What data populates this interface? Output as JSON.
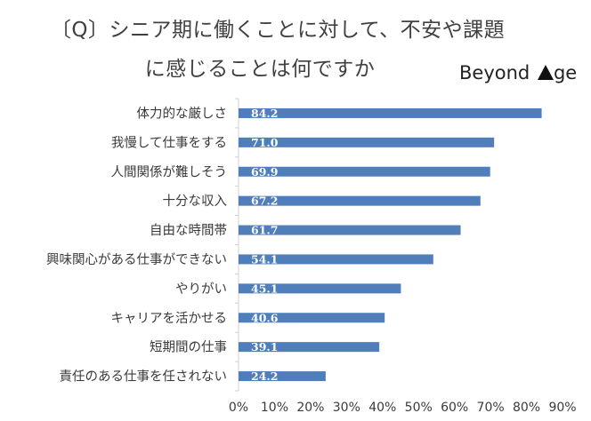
{
  "title_line1": "〔Q〕シニア期に働くことに対して、不安や課題",
  "title_line2": "に感じることは何ですか",
  "logo_text": "Beyond",
  "logo_text2": "ge",
  "logo_icon": "triangle-a-icon",
  "colors": {
    "bar": "#4f7ebb",
    "text": "#404040",
    "axis": "#d0d0d0"
  },
  "chart_data": {
    "type": "bar",
    "orientation": "horizontal",
    "title": "〔Q〕シニア期に働くことに対して、不安や課題に感じることは何ですか",
    "categories": [
      "体力的な厳しさ",
      "我慢して仕事をする",
      "人間関係が難しそう",
      "十分な収入",
      "自由な時間帯",
      "興味関心がある仕事ができない",
      "やりがい",
      "キャリアを活かせる",
      "短期間の仕事",
      "責任のある仕事を任されない"
    ],
    "values": [
      84.2,
      71.0,
      69.9,
      67.2,
      61.7,
      54.1,
      45.1,
      40.6,
      39.1,
      24.2
    ],
    "value_labels": [
      "84.2",
      "71.0",
      "69.9",
      "67.2",
      "61.7",
      "54.1",
      "45.1",
      "40.6",
      "39.1",
      "24.2"
    ],
    "xlim": [
      0,
      90
    ],
    "xticks": [
      "0%",
      "10%",
      "20%",
      "30%",
      "40%",
      "50%",
      "60%",
      "70%",
      "80%",
      "90%"
    ],
    "xlabel": "",
    "ylabel": "",
    "grid": false,
    "legend": "none"
  }
}
